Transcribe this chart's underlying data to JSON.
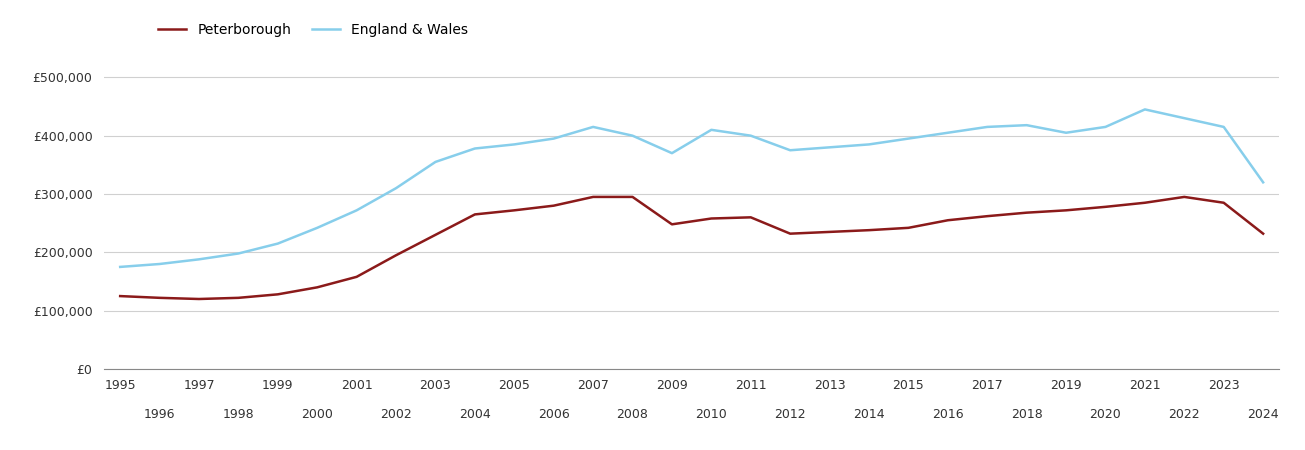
{
  "peterborough_years": [
    1995,
    1996,
    1997,
    1998,
    1999,
    2000,
    2001,
    2002,
    2003,
    2004,
    2005,
    2006,
    2007,
    2008,
    2009,
    2010,
    2011,
    2012,
    2013,
    2014,
    2015,
    2016,
    2017,
    2018,
    2019,
    2020,
    2021,
    2022,
    2023,
    2024
  ],
  "peterborough_values": [
    125000,
    122000,
    120000,
    122000,
    128000,
    140000,
    158000,
    195000,
    230000,
    265000,
    272000,
    280000,
    295000,
    295000,
    248000,
    258000,
    260000,
    232000,
    235000,
    238000,
    242000,
    255000,
    262000,
    268000,
    272000,
    278000,
    285000,
    295000,
    285000,
    232000
  ],
  "england_years": [
    1995,
    1996,
    1997,
    1998,
    1999,
    2000,
    2001,
    2002,
    2003,
    2004,
    2005,
    2006,
    2007,
    2008,
    2009,
    2010,
    2011,
    2012,
    2013,
    2014,
    2015,
    2016,
    2017,
    2018,
    2019,
    2020,
    2021,
    2022,
    2023,
    2024
  ],
  "england_values": [
    175000,
    180000,
    188000,
    198000,
    215000,
    242000,
    272000,
    310000,
    355000,
    378000,
    385000,
    395000,
    415000,
    400000,
    370000,
    410000,
    400000,
    375000,
    380000,
    385000,
    395000,
    405000,
    415000,
    418000,
    405000,
    415000,
    445000,
    430000,
    415000,
    320000
  ],
  "peterborough_color": "#8b1a1a",
  "england_color": "#87ceeb",
  "peterborough_label": "Peterborough",
  "england_label": "England & Wales",
  "yticks": [
    0,
    100000,
    200000,
    300000,
    400000,
    500000
  ],
  "ylim": [
    0,
    540000
  ],
  "xlim_min": 1994.6,
  "xlim_max": 2024.4,
  "bg_color": "#ffffff",
  "grid_color": "#d0d0d0",
  "tick_odd_years": [
    1995,
    1997,
    1999,
    2001,
    2003,
    2005,
    2007,
    2009,
    2011,
    2013,
    2015,
    2017,
    2019,
    2021,
    2023
  ],
  "tick_even_years": [
    1996,
    1998,
    2000,
    2002,
    2004,
    2006,
    2008,
    2010,
    2012,
    2014,
    2016,
    2018,
    2020,
    2022,
    2024
  ]
}
